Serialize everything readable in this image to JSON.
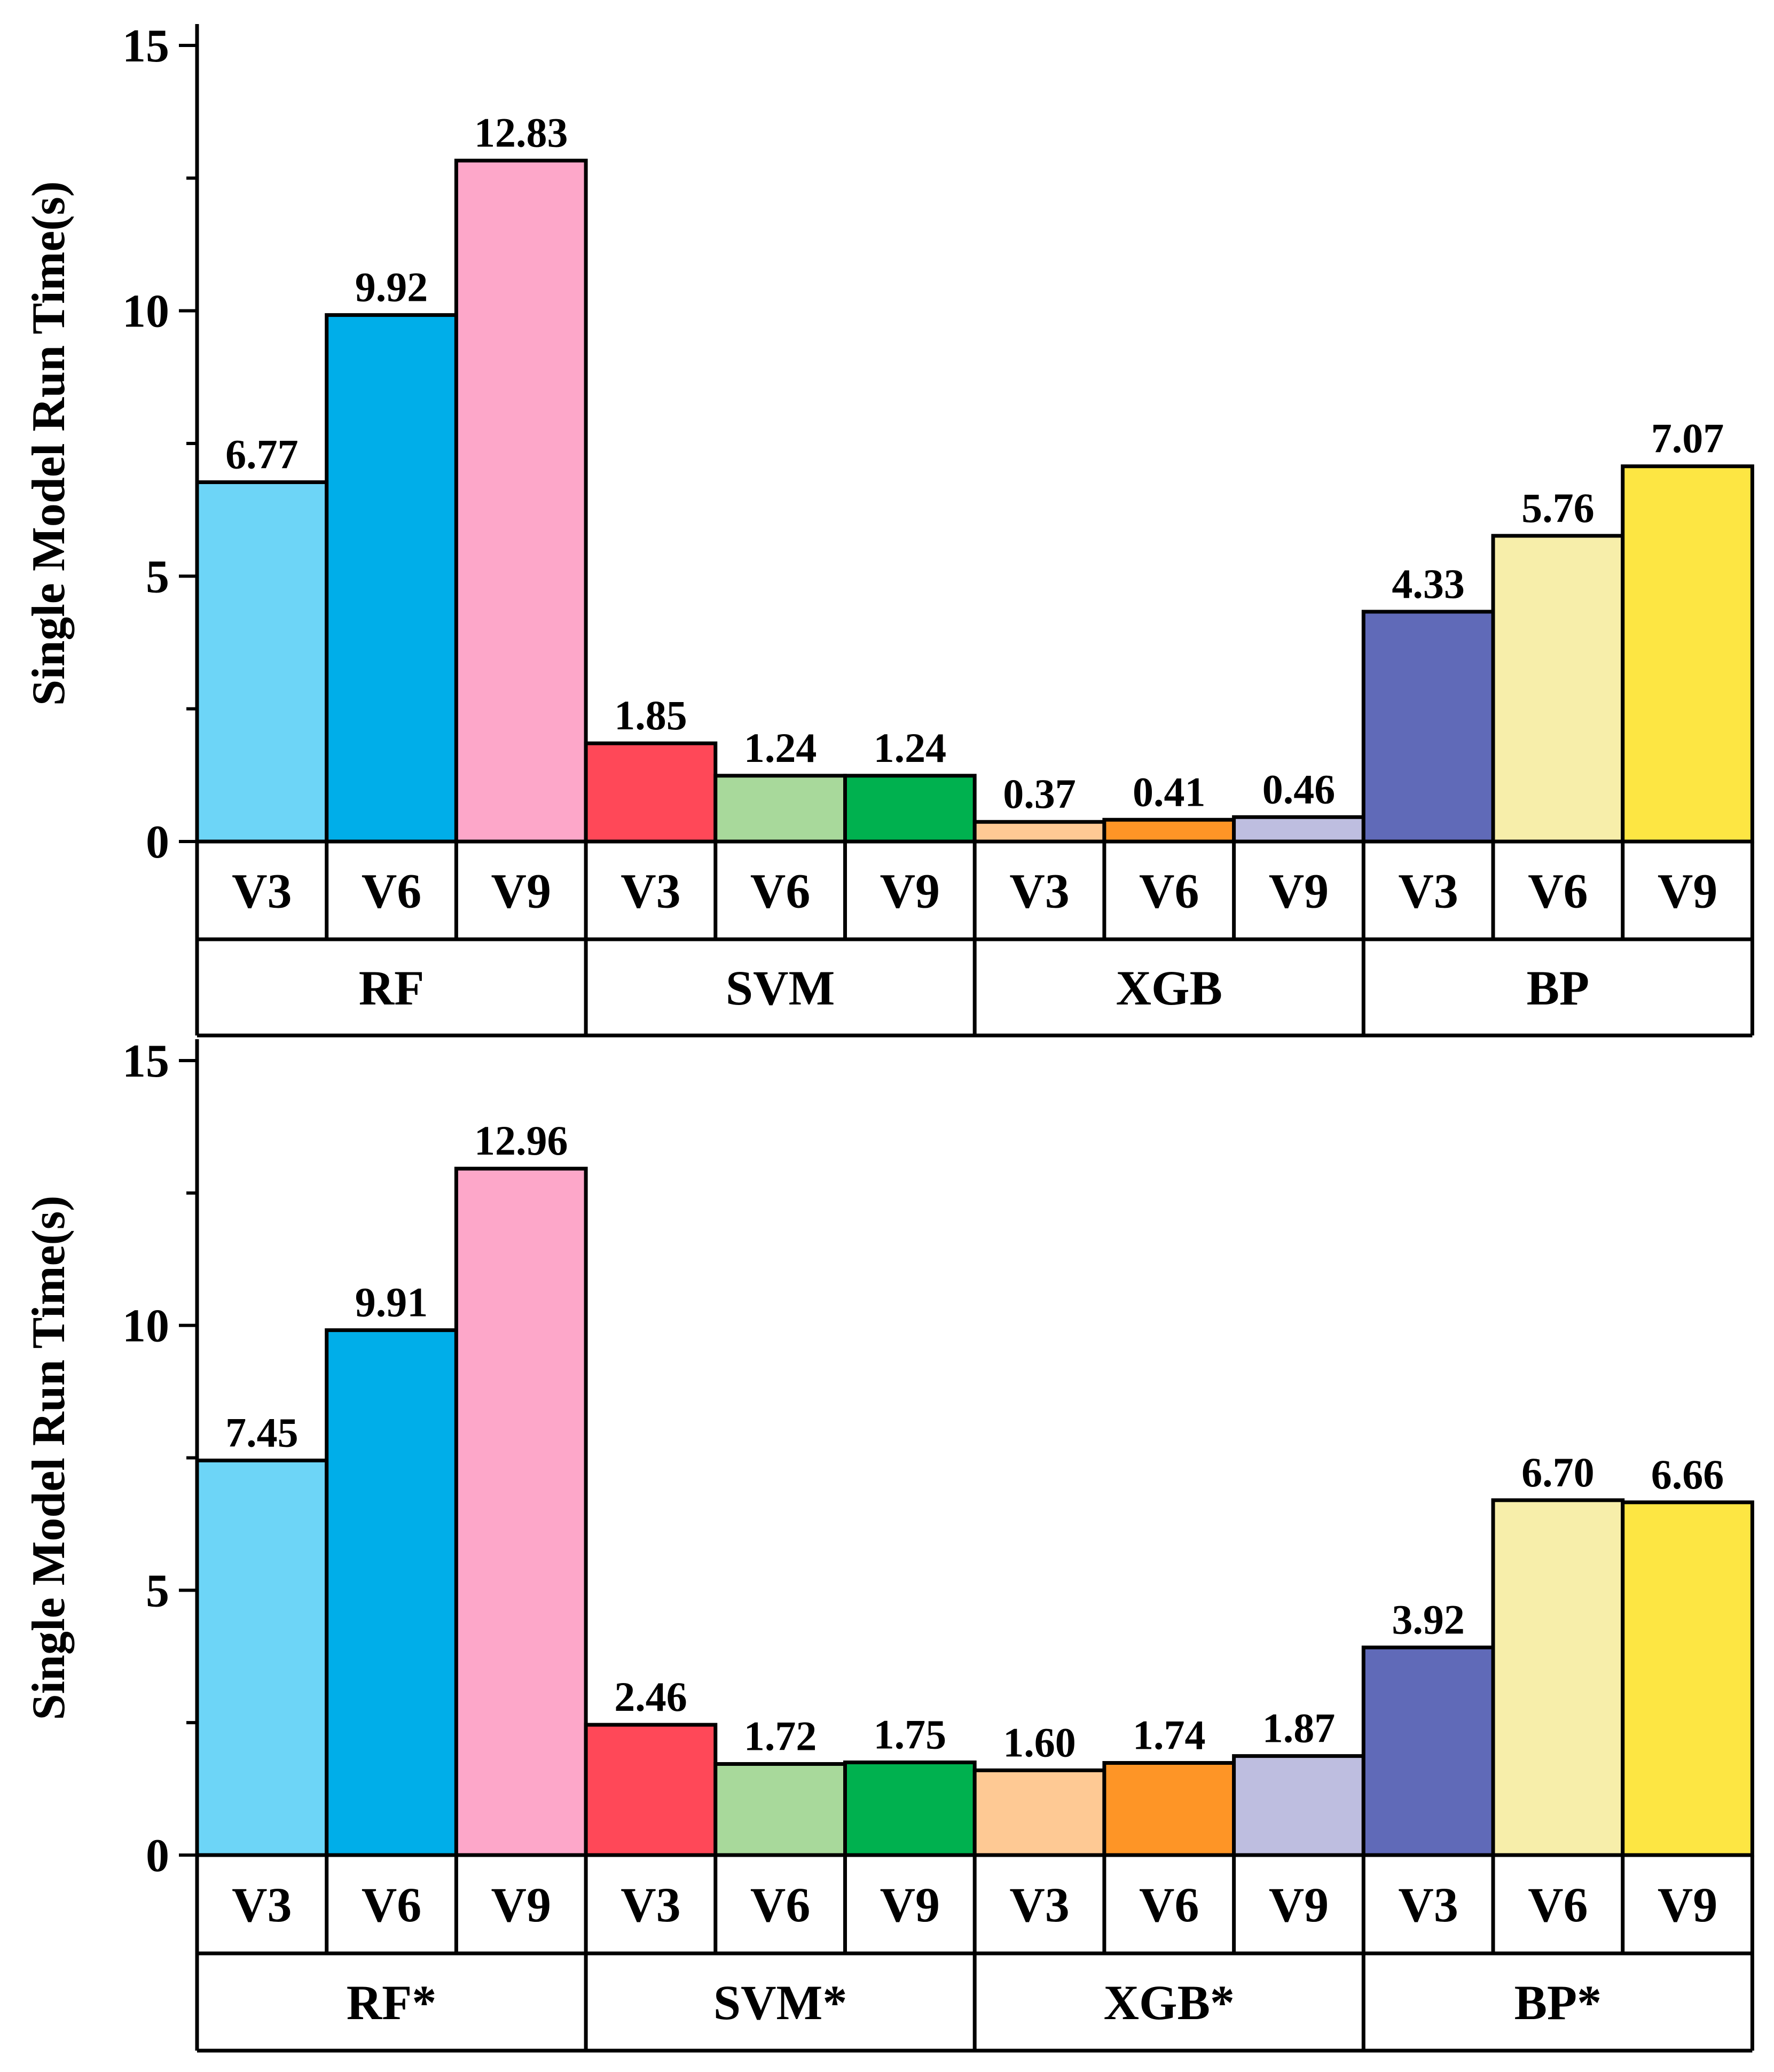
{
  "chart_data": [
    {
      "type": "bar",
      "ylabel": "Single Model Run Time(s)",
      "ylim": [
        0,
        15
      ],
      "yticks": [
        0,
        5,
        10,
        15
      ],
      "groups": [
        "RF",
        "SVM",
        "XGB",
        "BP"
      ],
      "subcategories": [
        "V3",
        "V6",
        "V9"
      ],
      "values": [
        6.77,
        9.92,
        12.83,
        1.85,
        1.24,
        1.24,
        0.37,
        0.41,
        0.46,
        4.33,
        5.76,
        7.07
      ],
      "labels": [
        "6.77",
        "9.92",
        "12.83",
        "1.85",
        "1.24",
        "1.24",
        "0.37",
        "0.41",
        "0.46",
        "4.33",
        "5.76",
        "7.07"
      ],
      "colors": [
        "#6dd5f7",
        "#00aee9",
        "#fda7c9",
        "#ff4858",
        "#a8d99b",
        "#00b14f",
        "#fec994",
        "#fe9526",
        "#bebee0",
        "#606ab8",
        "#f7eeaa",
        "#fde643"
      ]
    },
    {
      "type": "bar",
      "ylabel": "Single Model Run Time(s)",
      "ylim": [
        0,
        15
      ],
      "yticks": [
        0,
        5,
        10,
        15
      ],
      "groups": [
        "RF*",
        "SVM*",
        "XGB*",
        "BP*"
      ],
      "subcategories": [
        "V3",
        "V6",
        "V9"
      ],
      "values": [
        7.45,
        9.91,
        12.96,
        2.46,
        1.72,
        1.75,
        1.6,
        1.74,
        1.87,
        3.92,
        6.7,
        6.66
      ],
      "labels": [
        "7.45",
        "9.91",
        "12.96",
        "2.46",
        "1.72",
        "1.75",
        "1.60",
        "1.74",
        "1.87",
        "3.92",
        "6.70",
        "6.66"
      ],
      "colors": [
        "#6dd5f7",
        "#00aee9",
        "#fda7c9",
        "#ff4858",
        "#a8d99b",
        "#00b14f",
        "#fec994",
        "#fe9526",
        "#bebee0",
        "#606ab8",
        "#f7eeaa",
        "#fde643"
      ]
    }
  ]
}
